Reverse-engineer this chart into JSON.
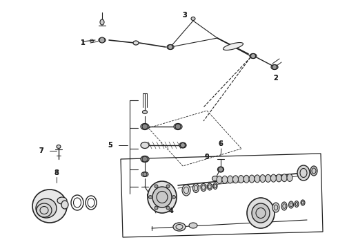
{
  "bg_color": "#ffffff",
  "line_color": "#222222",
  "label_color": "#111111",
  "fig_width": 4.9,
  "fig_height": 3.6,
  "dpi": 100
}
